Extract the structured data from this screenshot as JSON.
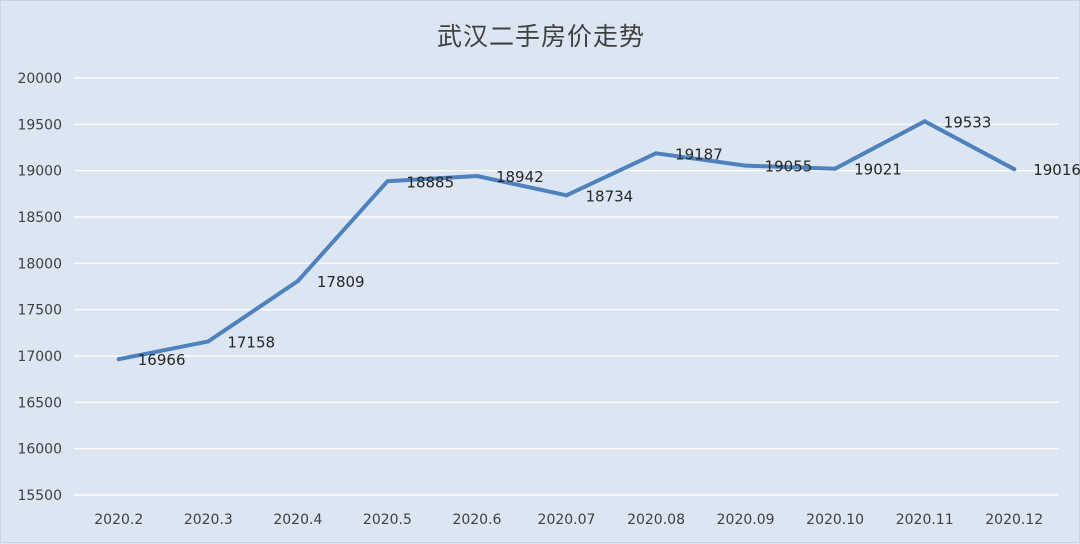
{
  "chart_data": {
    "type": "line",
    "title": "武汉二手房价走势",
    "xlabel": "",
    "ylabel": "",
    "categories": [
      "2020.2",
      "2020.3",
      "2020.4",
      "2020.5",
      "2020.6",
      "2020.07",
      "2020.08",
      "2020.09",
      "2020.10",
      "2020.11",
      "2020.12"
    ],
    "series": [
      {
        "values": [
          16966,
          17158,
          17809,
          18885,
          18942,
          18734,
          19187,
          19055,
          19021,
          19533,
          19016
        ]
      }
    ],
    "ylim": [
      15500,
      20000
    ],
    "yticks": [
      15500,
      16000,
      16500,
      17000,
      17500,
      18000,
      18500,
      19000,
      19500,
      20000
    ],
    "grid": true,
    "data_labels": true,
    "legend": "none",
    "colors": {
      "line": "#4f81bd",
      "background": "#dce6f2",
      "grid": "#ffffff"
    }
  }
}
